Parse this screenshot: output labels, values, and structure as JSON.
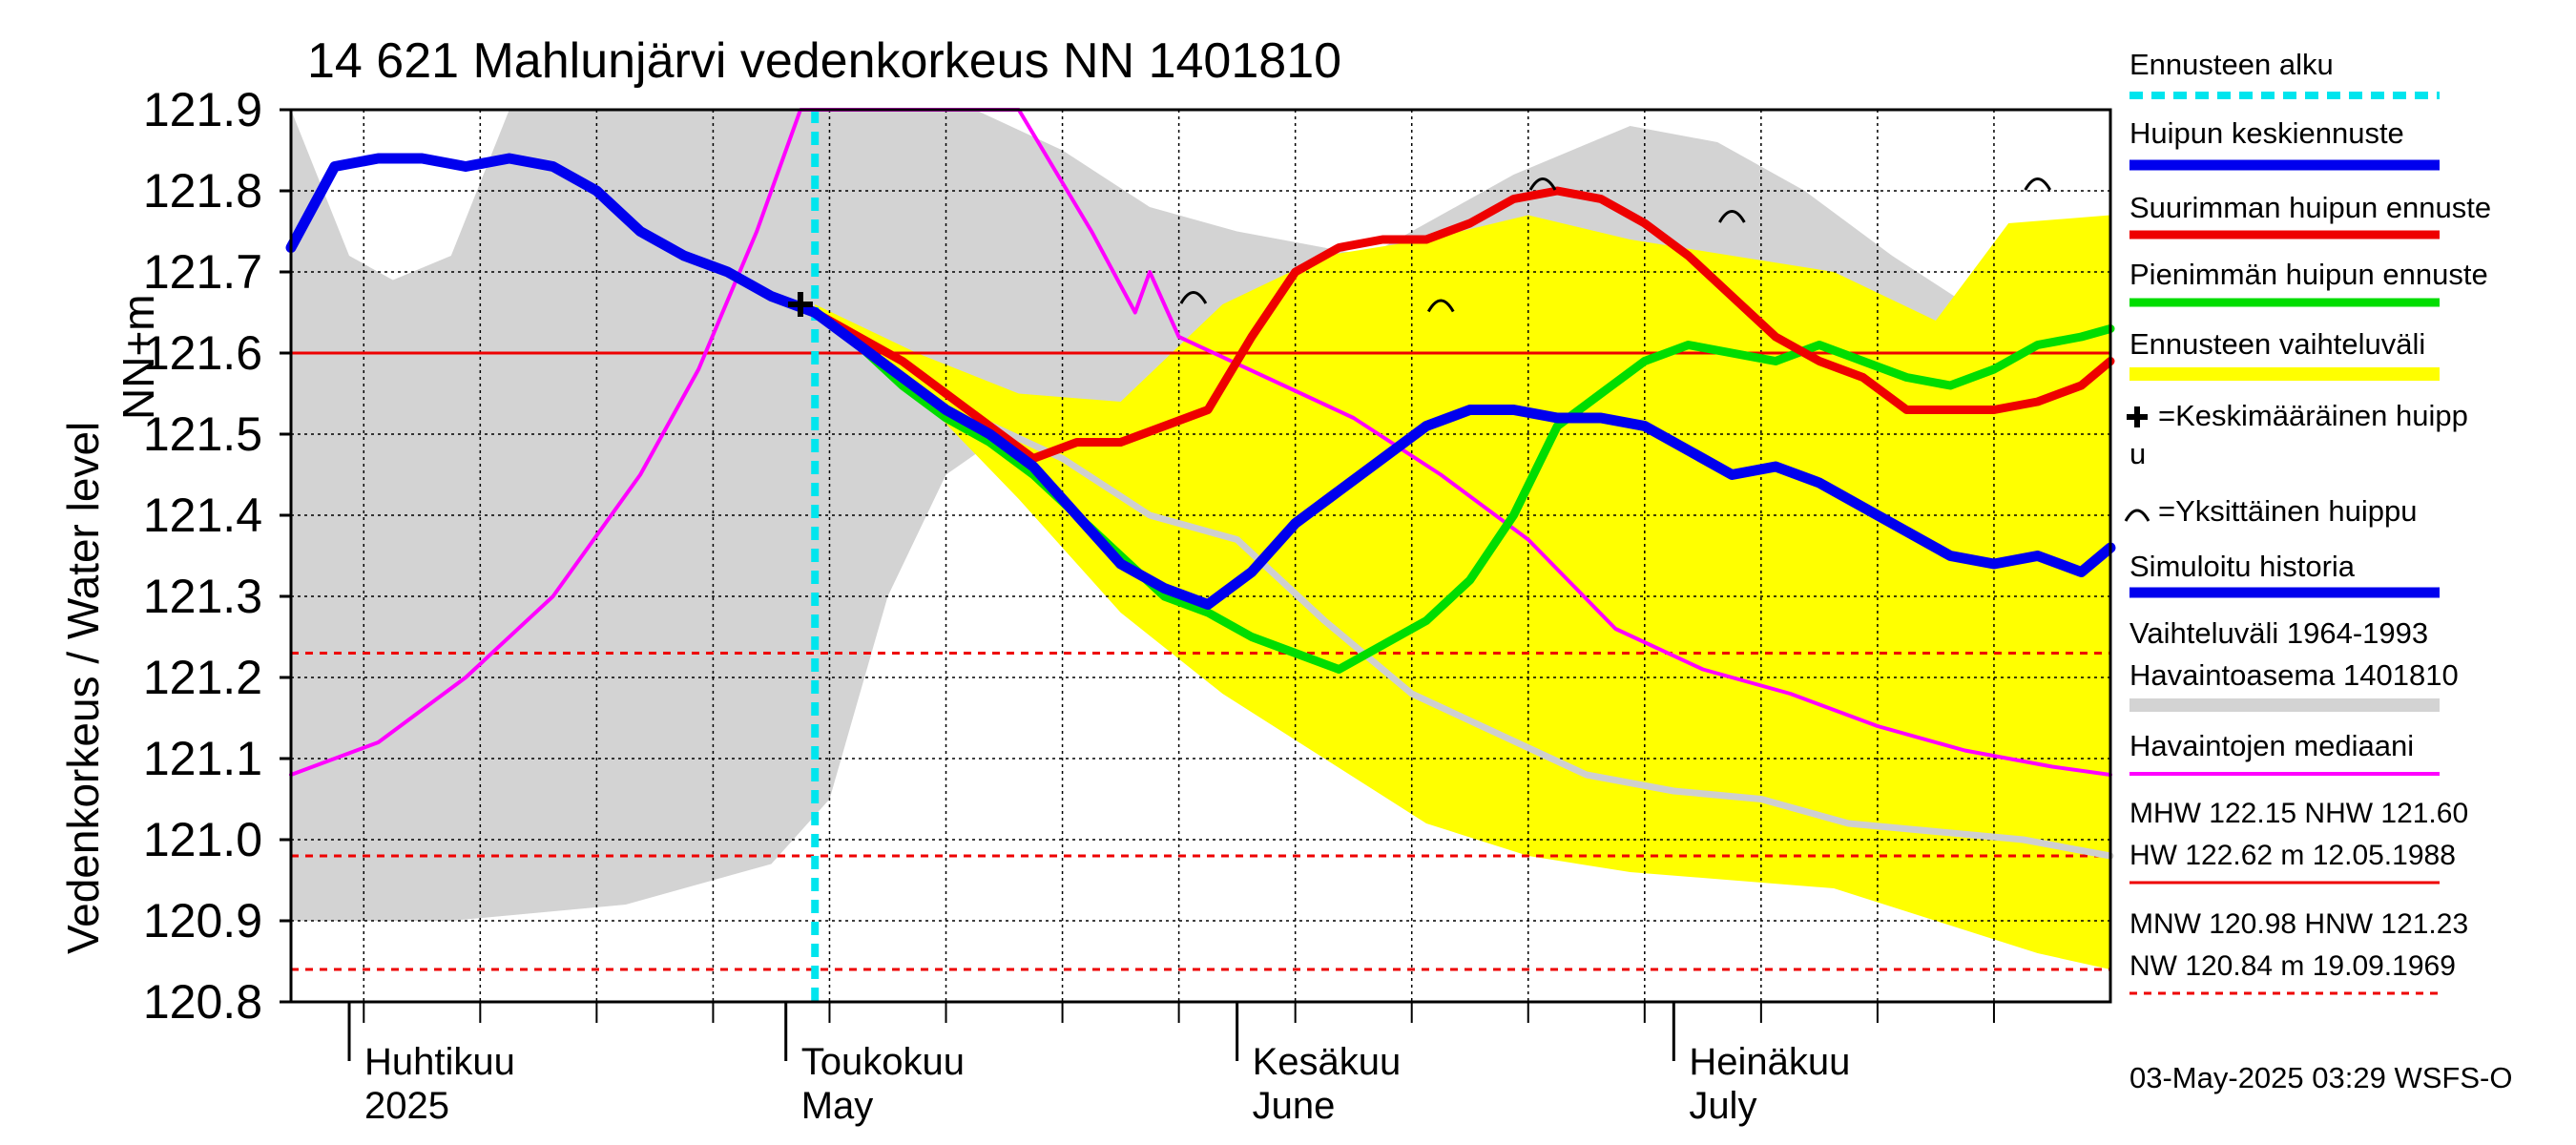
{
  "title": "14 621 Mahlunjärvi vedenkorkeus NN 1401810",
  "ylabel": "Vedenkorkeus / Water level",
  "yunit": "NN+m",
  "timestamp": "03-May-2025 03:29 WSFS-O",
  "x_ticks": [
    {
      "fi": "Huhtikuu",
      "en": "2025"
    },
    {
      "fi": "Toukokuu",
      "en": "May"
    },
    {
      "fi": "Kesäkuu",
      "en": "June"
    },
    {
      "fi": "Heinäkuu",
      "en": "July"
    }
  ],
  "legend": {
    "forecast_start": "Ennusteen alku",
    "mean_forecast": "Huipun keskiennuste",
    "max_forecast": "Suurimman huipun ennuste",
    "min_forecast": "Pienimmän huipun ennuste",
    "forecast_range": "Ennusteen vaihteluväli",
    "mean_peak_line1": "=Keskimääräinen huipp",
    "mean_peak_line2": "u",
    "single_peak": "=Yksittäinen huippu",
    "sim_history": "Simuloitu historia",
    "hist_range_line1": "Vaihteluväli 1964-1993",
    "hist_range_line2": " Havaintoasema 1401810",
    "obs_median": "Havaintojen mediaani"
  },
  "stats": {
    "line1": "MHW 122.15 NHW 121.60",
    "line2": "HW 122.62 m 12.05.1988",
    "line3": "MNW 120.98 HNW 121.23",
    "line4": "NW 120.84 m 19.09.1969"
  },
  "colors": {
    "forecast_start": "#00e5ee",
    "mean_forecast": "#0000ee",
    "max_forecast": "#ee0000",
    "min_forecast": "#00dd00",
    "forecast_range": "#ffff00",
    "hist_range": "#d3d3d3",
    "obs_median": "#ff00ff",
    "ref_lines": "#ee0000"
  },
  "chart_data": {
    "type": "line",
    "title": "14 621 Mahlunjärvi vedenkorkeus NN 1401810",
    "ylabel": "Vedenkorkeus / Water level",
    "ylim": [
      120.8,
      121.9
    ],
    "yticks": [
      120.8,
      120.9,
      121.0,
      121.1,
      121.2,
      121.3,
      121.4,
      121.5,
      121.6,
      121.7,
      121.8,
      121.9
    ],
    "xlim": [
      "2025-03-28",
      "2025-07-31"
    ],
    "forecast_start": "2025-05-03",
    "reference_lines": [
      {
        "label": "NHW",
        "value": 121.6,
        "style": "solid"
      },
      {
        "label": "HNW",
        "value": 121.23,
        "style": "dashed"
      },
      {
        "label": "MNW",
        "value": 120.98,
        "style": "dashed"
      },
      {
        "label": "NW",
        "value": 120.84,
        "style": "dashed"
      }
    ],
    "mean_peak_marker": {
      "x": "2025-05-02",
      "y": 121.66
    },
    "single_peaks": [
      {
        "x": "2025-05-29",
        "y": 121.66
      },
      {
        "x": "2025-06-15",
        "y": 121.65
      },
      {
        "x": "2025-06-22",
        "y": 121.8
      },
      {
        "x": "2025-07-05",
        "y": 121.76
      },
      {
        "x": "2025-07-26",
        "y": 121.8
      }
    ],
    "series": [
      {
        "name": "Simuloitu historia",
        "values": [
          [
            "2025-03-28",
            121.73
          ],
          [
            "2025-03-31",
            121.83
          ],
          [
            "2025-04-03",
            121.84
          ],
          [
            "2025-04-06",
            121.84
          ],
          [
            "2025-04-09",
            121.83
          ],
          [
            "2025-04-12",
            121.84
          ],
          [
            "2025-04-15",
            121.83
          ],
          [
            "2025-04-18",
            121.8
          ],
          [
            "2025-04-21",
            121.75
          ],
          [
            "2025-04-24",
            121.72
          ],
          [
            "2025-04-27",
            121.7
          ],
          [
            "2025-04-30",
            121.67
          ],
          [
            "2025-05-03",
            121.65
          ]
        ]
      },
      {
        "name": "Huipun keskiennuste",
        "values": [
          [
            "2025-05-03",
            121.65
          ],
          [
            "2025-05-06",
            121.61
          ],
          [
            "2025-05-09",
            121.57
          ],
          [
            "2025-05-12",
            121.53
          ],
          [
            "2025-05-15",
            121.5
          ],
          [
            "2025-05-18",
            121.46
          ],
          [
            "2025-05-21",
            121.4
          ],
          [
            "2025-05-24",
            121.34
          ],
          [
            "2025-05-27",
            121.31
          ],
          [
            "2025-05-30",
            121.29
          ],
          [
            "2025-06-02",
            121.33
          ],
          [
            "2025-06-05",
            121.39
          ],
          [
            "2025-06-08",
            121.43
          ],
          [
            "2025-06-11",
            121.47
          ],
          [
            "2025-06-14",
            121.51
          ],
          [
            "2025-06-17",
            121.53
          ],
          [
            "2025-06-20",
            121.53
          ],
          [
            "2025-06-23",
            121.52
          ],
          [
            "2025-06-26",
            121.52
          ],
          [
            "2025-06-29",
            121.51
          ],
          [
            "2025-07-02",
            121.48
          ],
          [
            "2025-07-05",
            121.45
          ],
          [
            "2025-07-08",
            121.46
          ],
          [
            "2025-07-11",
            121.44
          ],
          [
            "2025-07-14",
            121.41
          ],
          [
            "2025-07-17",
            121.38
          ],
          [
            "2025-07-20",
            121.35
          ],
          [
            "2025-07-23",
            121.34
          ],
          [
            "2025-07-26",
            121.35
          ],
          [
            "2025-07-29",
            121.33
          ],
          [
            "2025-07-31",
            121.36
          ]
        ]
      },
      {
        "name": "Suurimman huipun ennuste",
        "values": [
          [
            "2025-05-03",
            121.65
          ],
          [
            "2025-05-06",
            121.62
          ],
          [
            "2025-05-09",
            121.59
          ],
          [
            "2025-05-12",
            121.55
          ],
          [
            "2025-05-15",
            121.51
          ],
          [
            "2025-05-18",
            121.47
          ],
          [
            "2025-05-21",
            121.49
          ],
          [
            "2025-05-24",
            121.49
          ],
          [
            "2025-05-27",
            121.51
          ],
          [
            "2025-05-30",
            121.53
          ],
          [
            "2025-06-02",
            121.62
          ],
          [
            "2025-06-05",
            121.7
          ],
          [
            "2025-06-08",
            121.73
          ],
          [
            "2025-06-11",
            121.74
          ],
          [
            "2025-06-14",
            121.74
          ],
          [
            "2025-06-17",
            121.76
          ],
          [
            "2025-06-20",
            121.79
          ],
          [
            "2025-06-23",
            121.8
          ],
          [
            "2025-06-26",
            121.79
          ],
          [
            "2025-06-29",
            121.76
          ],
          [
            "2025-07-02",
            121.72
          ],
          [
            "2025-07-05",
            121.67
          ],
          [
            "2025-07-08",
            121.62
          ],
          [
            "2025-07-11",
            121.59
          ],
          [
            "2025-07-14",
            121.57
          ],
          [
            "2025-07-17",
            121.53
          ],
          [
            "2025-07-20",
            121.53
          ],
          [
            "2025-07-23",
            121.53
          ],
          [
            "2025-07-26",
            121.54
          ],
          [
            "2025-07-29",
            121.56
          ],
          [
            "2025-07-31",
            121.59
          ]
        ]
      },
      {
        "name": "Pienimmän huipun ennuste",
        "values": [
          [
            "2025-05-03",
            121.65
          ],
          [
            "2025-05-06",
            121.61
          ],
          [
            "2025-05-09",
            121.56
          ],
          [
            "2025-05-12",
            121.52
          ],
          [
            "2025-05-15",
            121.49
          ],
          [
            "2025-05-18",
            121.45
          ],
          [
            "2025-05-21",
            121.4
          ],
          [
            "2025-05-24",
            121.35
          ],
          [
            "2025-05-27",
            121.3
          ],
          [
            "2025-05-30",
            121.28
          ],
          [
            "2025-06-02",
            121.25
          ],
          [
            "2025-06-05",
            121.23
          ],
          [
            "2025-06-08",
            121.21
          ],
          [
            "2025-06-11",
            121.24
          ],
          [
            "2025-06-14",
            121.27
          ],
          [
            "2025-06-17",
            121.32
          ],
          [
            "2025-06-20",
            121.4
          ],
          [
            "2025-06-23",
            121.51
          ],
          [
            "2025-06-26",
            121.55
          ],
          [
            "2025-06-29",
            121.59
          ],
          [
            "2025-07-02",
            121.61
          ],
          [
            "2025-07-05",
            121.6
          ],
          [
            "2025-07-08",
            121.59
          ],
          [
            "2025-07-11",
            121.61
          ],
          [
            "2025-07-14",
            121.59
          ],
          [
            "2025-07-17",
            121.57
          ],
          [
            "2025-07-20",
            121.56
          ],
          [
            "2025-07-23",
            121.58
          ],
          [
            "2025-07-26",
            121.61
          ],
          [
            "2025-07-29",
            121.62
          ],
          [
            "2025-07-31",
            121.63
          ]
        ]
      },
      {
        "name": "Havaintojen mediaani",
        "values": [
          [
            "2025-03-28",
            121.08
          ],
          [
            "2025-04-03",
            121.12
          ],
          [
            "2025-04-09",
            121.2
          ],
          [
            "2025-04-15",
            121.3
          ],
          [
            "2025-04-21",
            121.45
          ],
          [
            "2025-04-25",
            121.58
          ],
          [
            "2025-04-29",
            121.75
          ],
          [
            "2025-05-02",
            121.9
          ],
          [
            "2025-05-17",
            121.9
          ],
          [
            "2025-05-22",
            121.75
          ],
          [
            "2025-05-25",
            121.65
          ],
          [
            "2025-05-26",
            121.7
          ],
          [
            "2025-05-28",
            121.62
          ],
          [
            "2025-06-03",
            121.57
          ],
          [
            "2025-06-09",
            121.52
          ],
          [
            "2025-06-15",
            121.45
          ],
          [
            "2025-06-21",
            121.37
          ],
          [
            "2025-06-27",
            121.26
          ],
          [
            "2025-07-03",
            121.21
          ],
          [
            "2025-07-09",
            121.18
          ],
          [
            "2025-07-15",
            121.14
          ],
          [
            "2025-07-21",
            121.11
          ],
          [
            "2025-07-27",
            121.09
          ],
          [
            "2025-07-31",
            121.08
          ]
        ]
      },
      {
        "name": "Havaintoasema 1401810 (grey)",
        "values": [
          [
            "2025-05-14",
            121.52
          ],
          [
            "2025-05-20",
            121.47
          ],
          [
            "2025-05-26",
            121.4
          ],
          [
            "2025-06-01",
            121.37
          ],
          [
            "2025-06-07",
            121.27
          ],
          [
            "2025-06-13",
            121.18
          ],
          [
            "2025-06-19",
            121.13
          ],
          [
            "2025-06-25",
            121.08
          ],
          [
            "2025-07-01",
            121.06
          ],
          [
            "2025-07-07",
            121.05
          ],
          [
            "2025-07-13",
            121.02
          ],
          [
            "2025-07-19",
            121.01
          ],
          [
            "2025-07-25",
            121.0
          ],
          [
            "2025-07-31",
            120.98
          ]
        ]
      }
    ],
    "bands": [
      {
        "name": "Vaihteluväli 1964-1993",
        "upper": [
          [
            "2025-03-28",
            121.9
          ],
          [
            "2025-04-01",
            121.72
          ],
          [
            "2025-04-04",
            121.69
          ],
          [
            "2025-04-08",
            121.72
          ],
          [
            "2025-04-12",
            121.9
          ],
          [
            "2025-05-14",
            121.9
          ],
          [
            "2025-05-20",
            121.85
          ],
          [
            "2025-05-26",
            121.78
          ],
          [
            "2025-06-01",
            121.75
          ],
          [
            "2025-06-10",
            121.72
          ],
          [
            "2025-06-20",
            121.82
          ],
          [
            "2025-06-28",
            121.88
          ],
          [
            "2025-07-04",
            121.86
          ],
          [
            "2025-07-10",
            121.8
          ],
          [
            "2025-07-16",
            121.72
          ],
          [
            "2025-07-22",
            121.65
          ],
          [
            "2025-07-31",
            121.63
          ]
        ],
        "lower": [
          [
            "2025-03-28",
            120.9
          ],
          [
            "2025-04-08",
            120.9
          ],
          [
            "2025-04-20",
            120.92
          ],
          [
            "2025-04-30",
            120.97
          ],
          [
            "2025-05-04",
            121.05
          ],
          [
            "2025-05-08",
            121.3
          ],
          [
            "2025-05-12",
            121.45
          ],
          [
            "2025-05-16",
            121.5
          ],
          [
            "2025-05-20",
            121.5
          ],
          [
            "2025-06-01",
            121.5
          ],
          [
            "2025-06-10",
            121.5
          ],
          [
            "2025-06-20",
            121.5
          ],
          [
            "2025-07-31",
            121.5
          ]
        ]
      },
      {
        "name": "Ennusteen vaihteluväli",
        "upper": [
          [
            "2025-05-03",
            121.66
          ],
          [
            "2025-05-10",
            121.6
          ],
          [
            "2025-05-17",
            121.55
          ],
          [
            "2025-05-24",
            121.54
          ],
          [
            "2025-05-31",
            121.66
          ],
          [
            "2025-06-07",
            121.72
          ],
          [
            "2025-06-14",
            121.74
          ],
          [
            "2025-06-21",
            121.77
          ],
          [
            "2025-06-28",
            121.74
          ],
          [
            "2025-07-05",
            121.72
          ],
          [
            "2025-07-12",
            121.7
          ],
          [
            "2025-07-19",
            121.64
          ],
          [
            "2025-07-24",
            121.76
          ],
          [
            "2025-07-31",
            121.77
          ]
        ],
        "lower": [
          [
            "2025-05-03",
            121.65
          ],
          [
            "2025-05-10",
            121.55
          ],
          [
            "2025-05-17",
            121.42
          ],
          [
            "2025-05-24",
            121.28
          ],
          [
            "2025-05-31",
            121.18
          ],
          [
            "2025-06-07",
            121.1
          ],
          [
            "2025-06-14",
            121.02
          ],
          [
            "2025-06-21",
            120.98
          ],
          [
            "2025-06-28",
            120.96
          ],
          [
            "2025-07-05",
            120.95
          ],
          [
            "2025-07-12",
            120.94
          ],
          [
            "2025-07-19",
            120.9
          ],
          [
            "2025-07-26",
            120.86
          ],
          [
            "2025-07-31",
            120.84
          ]
        ]
      }
    ]
  }
}
